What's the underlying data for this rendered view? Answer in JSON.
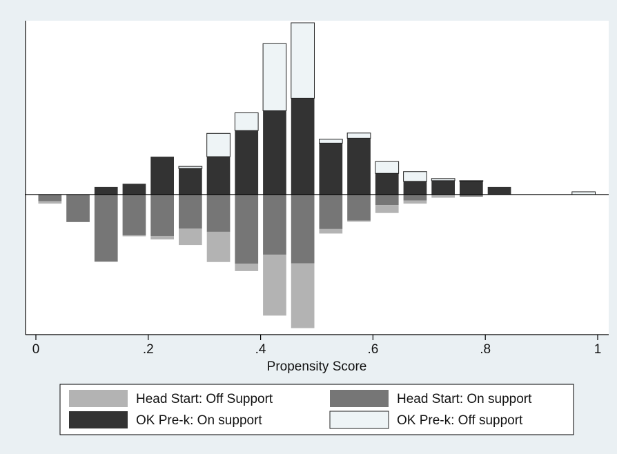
{
  "chart_data": {
    "type": "bar",
    "title": "",
    "xlabel": "Propensity Score",
    "ylabel": "",
    "xlim": [
      0,
      1
    ],
    "ylim": [
      -0.195,
      0.25
    ],
    "bin_width": 0.05,
    "x_ticks": [
      0,
      0.2,
      0.4,
      0.6,
      0.8,
      1
    ],
    "x_tick_labels": [
      "0",
      ".2",
      ".4",
      ".6",
      ".8",
      "1"
    ],
    "bins": [
      0.025,
      0.075,
      0.125,
      0.175,
      0.225,
      0.275,
      0.325,
      0.375,
      0.425,
      0.475,
      0.525,
      0.575,
      0.625,
      0.675,
      0.725,
      0.775,
      0.825,
      0.975
    ],
    "series": [
      {
        "name": "Head Start: Off Support",
        "color": "#b3b3b3",
        "direction": "down",
        "values": [
          0.0035,
          0,
          0,
          0.0015,
          0.005,
          0.0235,
          0.0435,
          0.0105,
          0.0875,
          0.093,
          0.0065,
          0.0015,
          0.0115,
          0.0045,
          0.0045,
          0,
          0,
          0
        ]
      },
      {
        "name": "Head Start: On support",
        "color": "#767676",
        "direction": "down",
        "values": [
          0.0095,
          0.0395,
          0.0965,
          0.0585,
          0.0595,
          0.049,
          0.0535,
          0.0995,
          0.0865,
          0.099,
          0.0495,
          0.0375,
          0.015,
          0.0085,
          0,
          0.003,
          0,
          0
        ]
      },
      {
        "name": "OK Pre-k: On support",
        "color": "#333333",
        "direction": "up",
        "values": [
          0,
          0,
          0.011,
          0.0155,
          0.0545,
          0.0375,
          0.0545,
          0.092,
          0.1205,
          0.1385,
          0.074,
          0.081,
          0.0305,
          0.019,
          0.02,
          0.019,
          0.011,
          0
        ]
      },
      {
        "name": "OK Pre-k: Off support",
        "color": "#eef4f6",
        "direction": "up",
        "values": [
          0,
          0,
          0,
          0,
          0,
          0.003,
          0.0335,
          0.0255,
          0.0965,
          0.1085,
          0.0055,
          0.0075,
          0.017,
          0.014,
          0.003,
          0.001,
          0,
          0.004
        ]
      }
    ],
    "grid": false,
    "legend": {
      "position": "bottom",
      "columns": 2,
      "order": [
        0,
        1,
        2,
        3
      ]
    },
    "colors": {
      "background": "#eaf0f3",
      "plot_background": "#ffffff",
      "axis": "#000000"
    }
  }
}
